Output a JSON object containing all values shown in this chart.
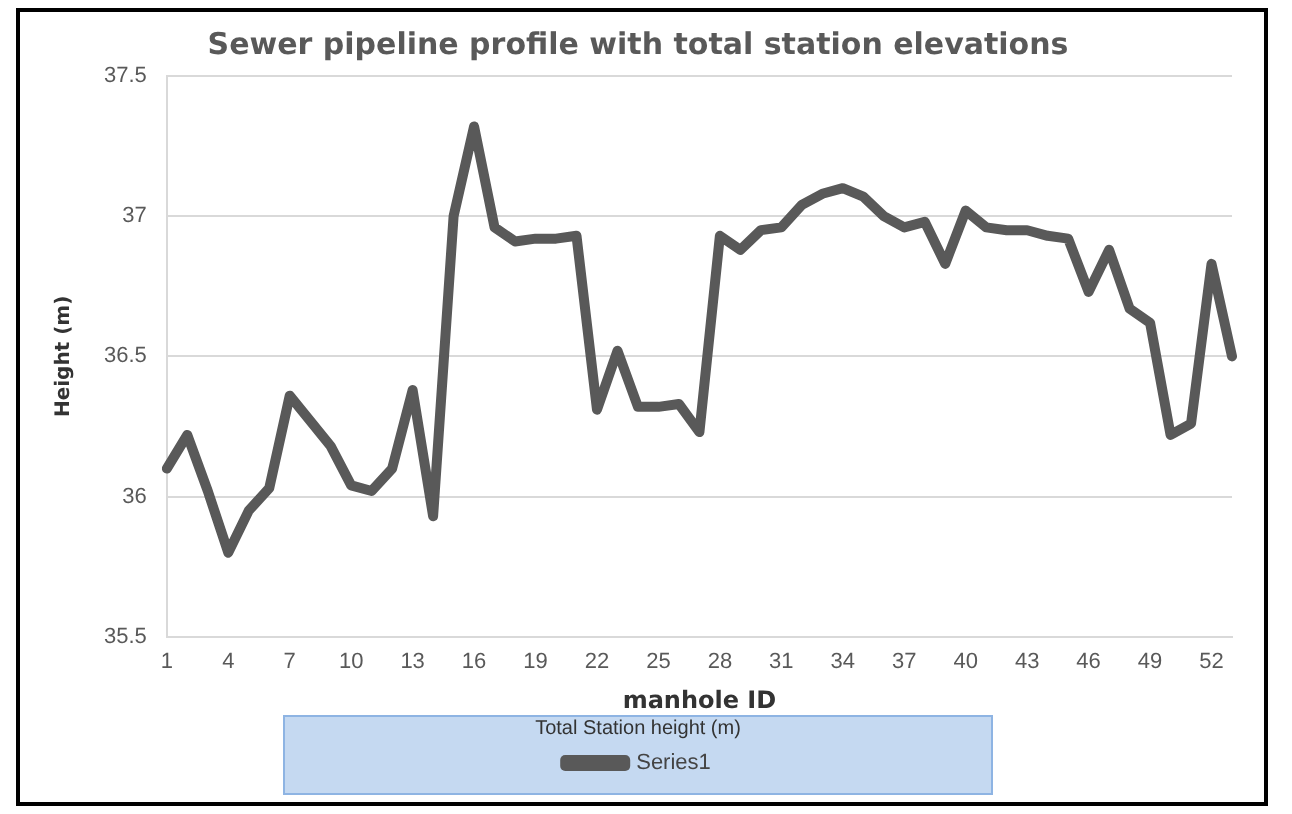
{
  "chart_data": {
    "type": "line",
    "title": "Sewer pipeline profile with total station elevations",
    "xlabel": "manhole ID",
    "ylabel": "Height (m)",
    "legend_title": "Total Station height (m)",
    "categories": [
      "1",
      null,
      null,
      "4",
      null,
      null,
      "7",
      null,
      null,
      "10",
      null,
      null,
      "13",
      null,
      null,
      "16",
      null,
      null,
      "19",
      null,
      null,
      "22",
      null,
      null,
      "25",
      null,
      null,
      "28",
      null,
      null,
      "31",
      null,
      null,
      "34",
      null,
      null,
      "37",
      null,
      null,
      "40",
      null,
      null,
      "43",
      null,
      null,
      "46",
      null,
      null,
      "49",
      null,
      null,
      "52",
      null
    ],
    "series": [
      {
        "name": "Series1",
        "color": "#595959",
        "values": [
          36.1,
          36.22,
          36.02,
          35.8,
          35.95,
          36.03,
          36.36,
          36.27,
          36.18,
          36.04,
          36.02,
          36.1,
          36.38,
          35.93,
          37.0,
          37.32,
          36.96,
          36.91,
          36.92,
          36.92,
          36.93,
          36.31,
          36.52,
          36.32,
          36.32,
          36.33,
          36.23,
          36.93,
          36.88,
          36.95,
          36.96,
          37.04,
          37.08,
          37.1,
          37.07,
          37.0,
          36.96,
          36.98,
          36.83,
          37.02,
          36.96,
          36.95,
          36.95,
          36.93,
          36.92,
          36.73,
          36.88,
          36.67,
          36.62,
          36.22,
          36.26,
          36.83,
          36.5
        ]
      }
    ],
    "ylim": [
      35.5,
      37.5
    ],
    "yticks": [
      35.5,
      36,
      36.5,
      37,
      37.5
    ],
    "grid": "y",
    "legend": "bottom",
    "marker": "none",
    "line_style": "solid"
  }
}
